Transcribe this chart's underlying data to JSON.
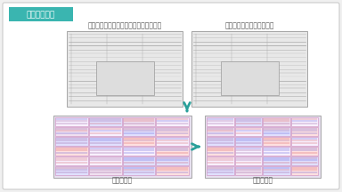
{
  "bg_color": "#f0f0f0",
  "border_color": "#cccccc",
  "header_bg": "#3ab5b0",
  "header_text": "自動補正機能",
  "header_text_color": "#ffffff",
  "label_top_left": "スキャンデータ１青焼き図面（＋歪み）",
  "label_top_right": "スキャンデータ２低解像度",
  "label_bottom_left": "自動補正前",
  "label_bottom_right": "自動補正後",
  "arrow_color": "#2aa09a",
  "text_color": "#555555",
  "text_fontsize": 5.5,
  "header_fontsize": 6.5
}
